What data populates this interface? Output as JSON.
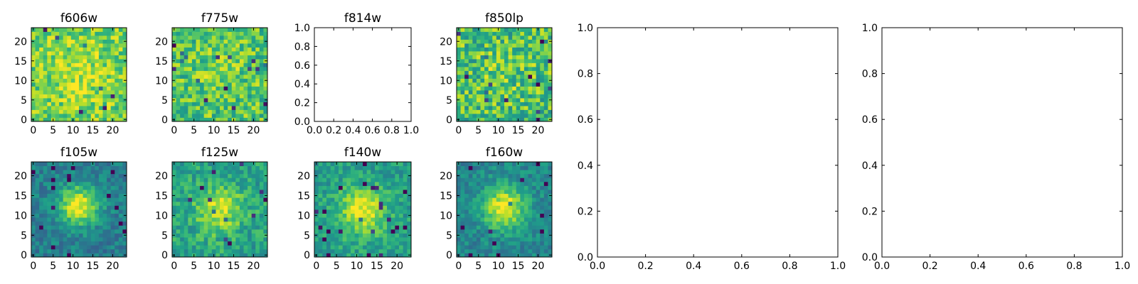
{
  "chart_data": [
    {
      "type": "heatmap",
      "title": "f606w",
      "image_size": 24,
      "colormap": "viridis",
      "blob": {
        "cx": 11.5,
        "cy": 11.5,
        "sigma": 5.0,
        "amp": 0.12
      },
      "noise": 0.38,
      "base": 0.78,
      "seed": 11,
      "xticks": [
        "0",
        "5",
        "10",
        "15",
        "20"
      ],
      "yticks": [
        "0",
        "5",
        "10",
        "15",
        "20"
      ]
    },
    {
      "type": "heatmap",
      "title": "f775w",
      "image_size": 24,
      "colormap": "viridis",
      "blob": {
        "cx": 11.5,
        "cy": 11.5,
        "sigma": 4.5,
        "amp": 0.08
      },
      "noise": 0.42,
      "base": 0.72,
      "seed": 23,
      "xticks": [
        "0",
        "5",
        "10",
        "15",
        "20"
      ],
      "yticks": [
        "0",
        "5",
        "10",
        "15",
        "20"
      ]
    },
    {
      "type": "empty",
      "title": "f814w",
      "xlim": [
        0,
        1
      ],
      "ylim": [
        0,
        1
      ],
      "xticks": [
        "0.0",
        "0.2",
        "0.4",
        "0.6",
        "0.8",
        "1.0"
      ],
      "yticks": [
        "0.0",
        "0.2",
        "0.4",
        "0.6",
        "0.8",
        "1.0"
      ]
    },
    {
      "type": "heatmap",
      "title": "f850lp",
      "image_size": 24,
      "colormap": "viridis",
      "blob": {
        "cx": 11.5,
        "cy": 11.5,
        "sigma": 4.5,
        "amp": 0.06
      },
      "noise": 0.48,
      "base": 0.7,
      "seed": 37,
      "xticks": [
        "0",
        "5",
        "10",
        "15",
        "20"
      ],
      "yticks": [
        "0",
        "5",
        "10",
        "15",
        "20"
      ]
    },
    {
      "type": "heatmap",
      "title": "f105w",
      "image_size": 24,
      "colormap": "viridis",
      "blob": {
        "cx": 11.5,
        "cy": 12.5,
        "sigma": 3.6,
        "amp": 0.55
      },
      "noise": 0.24,
      "base": 0.42,
      "seed": 41,
      "xticks": [
        "0",
        "5",
        "10",
        "15",
        "20"
      ],
      "yticks": [
        "0",
        "5",
        "10",
        "15",
        "20"
      ]
    },
    {
      "type": "heatmap",
      "title": "f125w",
      "image_size": 24,
      "colormap": "viridis",
      "blob": {
        "cx": 11.5,
        "cy": 11.5,
        "sigma": 4.0,
        "amp": 0.35
      },
      "noise": 0.3,
      "base": 0.58,
      "seed": 53,
      "xticks": [
        "0",
        "5",
        "10",
        "15",
        "20"
      ],
      "yticks": [
        "0",
        "5",
        "10",
        "15",
        "20"
      ]
    },
    {
      "type": "heatmap",
      "title": "f140w",
      "image_size": 24,
      "colormap": "viridis",
      "blob": {
        "cx": 11.5,
        "cy": 11.0,
        "sigma": 4.0,
        "amp": 0.42
      },
      "noise": 0.26,
      "base": 0.56,
      "seed": 67,
      "xticks": [
        "0",
        "5",
        "10",
        "15",
        "20"
      ],
      "yticks": [
        "0",
        "5",
        "10",
        "15",
        "20"
      ]
    },
    {
      "type": "heatmap",
      "title": "f160w",
      "image_size": 24,
      "colormap": "viridis",
      "blob": {
        "cx": 11.5,
        "cy": 12.0,
        "sigma": 3.8,
        "amp": 0.52
      },
      "noise": 0.24,
      "base": 0.46,
      "seed": 79,
      "xticks": [
        "0",
        "5",
        "10",
        "15",
        "20"
      ],
      "yticks": [
        "0",
        "5",
        "10",
        "15",
        "20"
      ]
    },
    {
      "type": "empty",
      "title": "",
      "xlim": [
        0,
        1
      ],
      "ylim": [
        0,
        1
      ],
      "xticks": [
        "0.0",
        "0.2",
        "0.4",
        "0.6",
        "0.8",
        "1.0"
      ],
      "yticks": [
        "0.0",
        "0.2",
        "0.4",
        "0.6",
        "0.8",
        "1.0"
      ]
    },
    {
      "type": "empty",
      "title": "",
      "xlim": [
        0,
        1
      ],
      "ylim": [
        0,
        1
      ],
      "xticks": [
        "0.0",
        "0.2",
        "0.4",
        "0.6",
        "0.8",
        "1.0"
      ],
      "yticks": [
        "0.0",
        "0.2",
        "0.4",
        "0.6",
        "0.8",
        "1.0"
      ]
    }
  ]
}
